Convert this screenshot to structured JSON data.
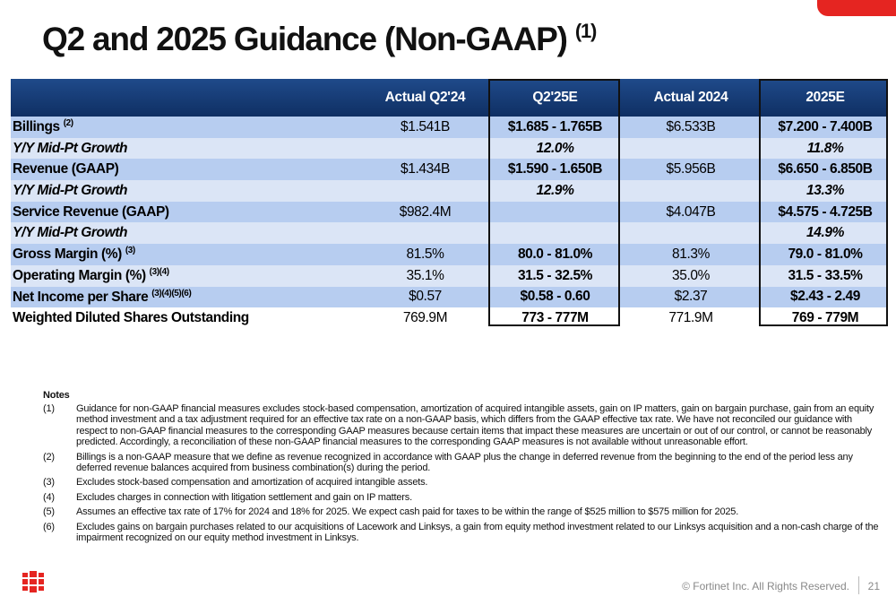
{
  "header": {
    "title": "Q2 and 2025 Guidance (Non-GAAP)",
    "title_note": "(1)"
  },
  "table": {
    "columns": [
      "Actual Q2'24",
      "Q2'25E",
      "Actual 2024",
      "2025E"
    ],
    "rows": [
      {
        "label": "Billings",
        "sup": "(2)",
        "cells": [
          "$1.541B",
          "$1.685 - 1.765B",
          "$6.533B",
          "$7.200 - 7.400B"
        ]
      },
      {
        "label": "Y/Y Mid-Pt Growth",
        "cells": [
          null,
          "12.0%",
          null,
          "11.8%"
        ]
      },
      {
        "label": "Revenue (GAAP)",
        "cells": [
          "$1.434B",
          "$1.590 - 1.650B",
          "$5.956B",
          "$6.650 - 6.850B"
        ]
      },
      {
        "label": "Y/Y Mid-Pt Growth",
        "cells": [
          null,
          "12.9%",
          null,
          "13.3%"
        ]
      },
      {
        "label": "Service Revenue (GAAP)",
        "cells": [
          "$982.4M",
          null,
          "$4.047B",
          "$4.575 - 4.725B"
        ]
      },
      {
        "label": "Y/Y Mid-Pt Growth",
        "cells": [
          null,
          null,
          null,
          "14.9%"
        ]
      },
      {
        "label": "Gross Margin (%)",
        "sup": "(3)",
        "cells": [
          "81.5%",
          "80.0 - 81.0%",
          "81.3%",
          "79.0 - 81.0%"
        ]
      },
      {
        "label": "Operating Margin (%)",
        "sup": "(3)(4)",
        "cells": [
          "35.1%",
          "31.5 - 32.5%",
          "35.0%",
          "31.5 - 33.5%"
        ]
      },
      {
        "label": "Net Income per Share",
        "sup": "(3)(4)(5)(6)",
        "cells": [
          "$0.57",
          "$0.58 - 0.60",
          "$2.37",
          "$2.43 - 2.49"
        ]
      },
      {
        "label": "Weighted Diluted Shares Outstanding",
        "cells": [
          "769.9M",
          "773 - 777M",
          "771.9M",
          "769 - 779M"
        ]
      }
    ]
  },
  "notes": {
    "heading": "Notes",
    "items": [
      {
        "num": "(1)",
        "text": "Guidance for non-GAAP financial measures excludes stock-based compensation, amortization of acquired intangible assets, gain on IP matters, gain on bargain purchase, gain from an equity method investment and a tax adjustment required for an effective tax rate on a non-GAAP basis, which differs from the GAAP effective tax rate. We have not reconciled our guidance with respect to non-GAAP financial measures to the corresponding GAAP measures because certain items that impact these measures are uncertain or out of our control, or cannot be reasonably predicted. Accordingly, a reconciliation of these non-GAAP financial measures to the corresponding GAAP measures is not available without unreasonable effort."
      },
      {
        "num": "(2)",
        "text": "Billings is a non-GAAP measure that we define as revenue recognized in accordance with GAAP plus the change in deferred revenue from the beginning to the end of the period less any deferred revenue balances acquired from business combination(s) during the period."
      },
      {
        "num": "(3)",
        "text": "Excludes stock-based compensation and amortization of acquired intangible assets."
      },
      {
        "num": "(4)",
        "text": "Excludes charges in connection with litigation settlement and gain on IP matters."
      },
      {
        "num": "(5)",
        "text": "Assumes an effective tax rate of 17% for 2024 and 18% for 2025. We expect cash paid for taxes to be within the range of $525 million to $575 million for 2025."
      },
      {
        "num": "(6)",
        "text": "Excludes gains on bargain purchases related to our acquisitions of Lacework and Linksys, a gain from equity method investment related to our Linksys acquisition and a non-cash charge of the impairment recognized on our equity method investment in Linksys."
      }
    ]
  },
  "footer": {
    "copyright": "© Fortinet Inc. All Rights Reserved.",
    "page": "21"
  }
}
